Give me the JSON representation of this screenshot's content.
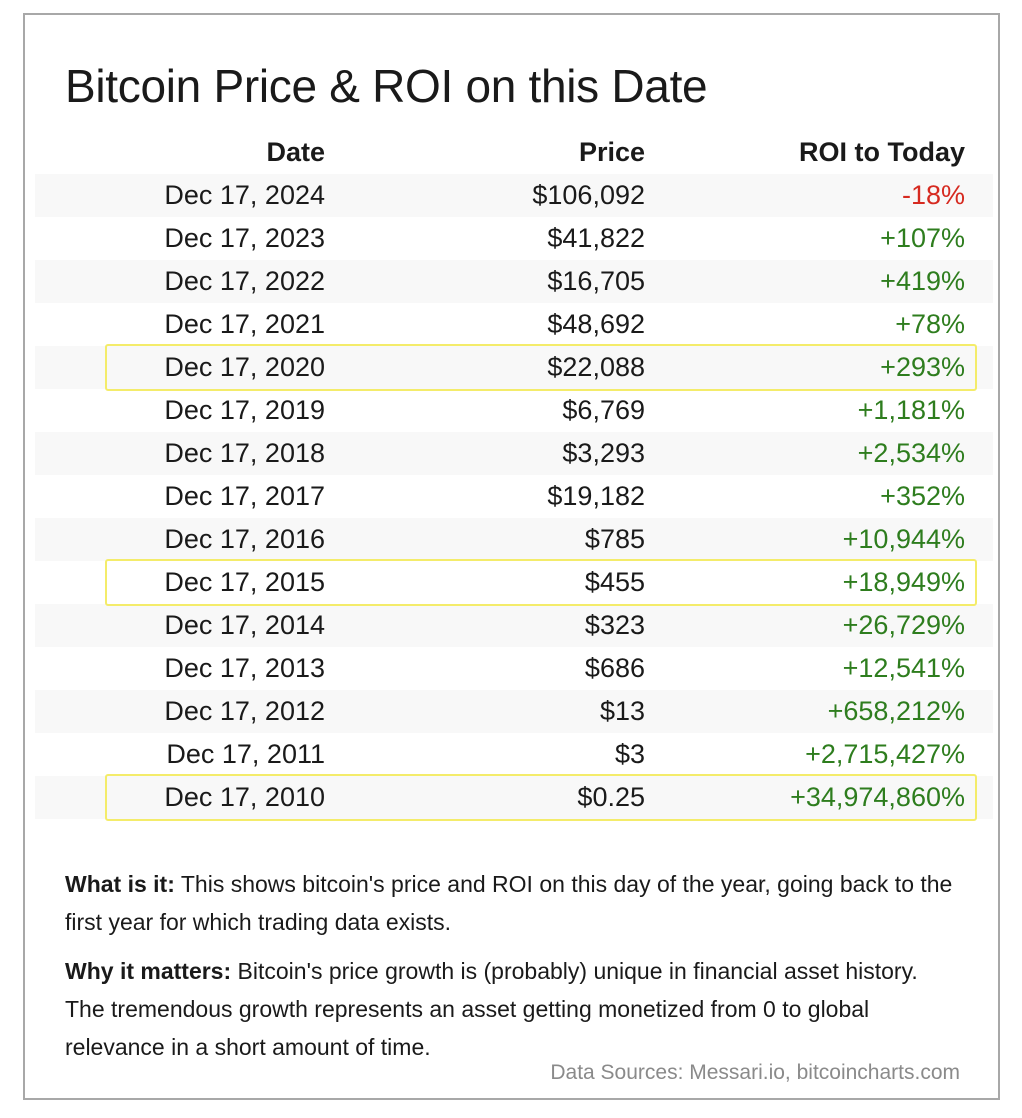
{
  "chart_data": {
    "type": "table",
    "title": "Bitcoin Price & ROI on this Date",
    "columns": [
      "Date",
      "Price",
      "ROI to Today"
    ],
    "rows": [
      {
        "date": "Dec 17, 2024",
        "price": "$106,092",
        "roi": "-18%",
        "highlight": false
      },
      {
        "date": "Dec 17, 2023",
        "price": "$41,822",
        "roi": "+107%",
        "highlight": false
      },
      {
        "date": "Dec 17, 2022",
        "price": "$16,705",
        "roi": "+419%",
        "highlight": false
      },
      {
        "date": "Dec 17, 2021",
        "price": "$48,692",
        "roi": "+78%",
        "highlight": false
      },
      {
        "date": "Dec 17, 2020",
        "price": "$22,088",
        "roi": "+293%",
        "highlight": true
      },
      {
        "date": "Dec 17, 2019",
        "price": "$6,769",
        "roi": "+1,181%",
        "highlight": false
      },
      {
        "date": "Dec 17, 2018",
        "price": "$3,293",
        "roi": "+2,534%",
        "highlight": false
      },
      {
        "date": "Dec 17, 2017",
        "price": "$19,182",
        "roi": "+352%",
        "highlight": false
      },
      {
        "date": "Dec 17, 2016",
        "price": "$785",
        "roi": "+10,944%",
        "highlight": false
      },
      {
        "date": "Dec 17, 2015",
        "price": "$455",
        "roi": "+18,949%",
        "highlight": true
      },
      {
        "date": "Dec 17, 2014",
        "price": "$323",
        "roi": "+26,729%",
        "highlight": false
      },
      {
        "date": "Dec 17, 2013",
        "price": "$686",
        "roi": "+12,541%",
        "highlight": false
      },
      {
        "date": "Dec 17, 2012",
        "price": "$13",
        "roi": "+658,212%",
        "highlight": false
      },
      {
        "date": "Dec 17, 2011",
        "price": "$3",
        "roi": "+2,715,427%",
        "highlight": false
      },
      {
        "date": "Dec 17, 2010",
        "price": "$0.25",
        "roi": "+34,974,860%",
        "highlight": true
      }
    ]
  },
  "notes": {
    "what_label": "What is it:",
    "what_text": " This shows bitcoin's price and ROI on this day of the year, going back to the first year for which trading data exists.",
    "why_label": "Why it matters:",
    "why_text": " Bitcoin's price growth is (probably) unique in financial asset history. The tremendous growth represents an asset getting monetized from 0 to global relevance in a short amount of time."
  },
  "sources": "Data Sources: Messari.io, bitcoincharts.com",
  "colors": {
    "positive": "#2e7d1e",
    "negative": "#d62a20",
    "highlight_border": "#f4ec6a",
    "row_shade": "#f8f8f8"
  }
}
